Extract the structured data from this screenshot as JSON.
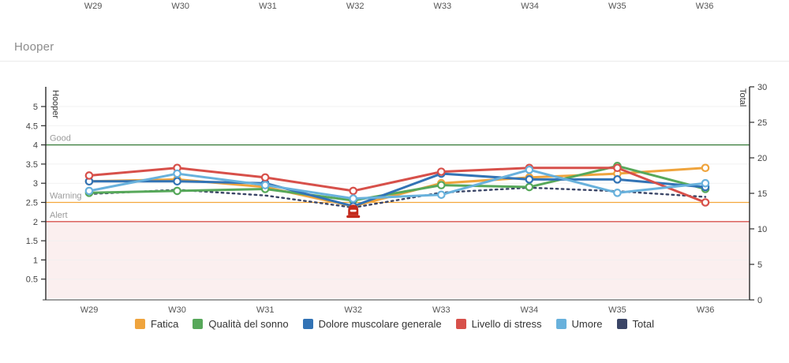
{
  "header": {
    "title": "Hooper"
  },
  "previous_chart_axis": {
    "labels": [
      "W29",
      "W30",
      "W31",
      "W32",
      "W33",
      "W34",
      "W35",
      "W36"
    ]
  },
  "chart_data": {
    "type": "line",
    "categories": [
      "W29",
      "W30",
      "W31",
      "W32",
      "W33",
      "W34",
      "W35",
      "W36"
    ],
    "left_axis": {
      "label": "Hooper",
      "ticks": [
        5,
        4.5,
        4,
        3.5,
        3,
        2.5,
        2,
        1.5,
        1,
        0.5
      ],
      "range": [
        0,
        5.55
      ]
    },
    "right_axis": {
      "label": "Total",
      "ticks": [
        30,
        25,
        20,
        15,
        10,
        5,
        0
      ],
      "range": [
        0,
        30
      ]
    },
    "reference_lines": [
      {
        "label": "Good",
        "value": 4,
        "color": "#357a38"
      },
      {
        "label": "Warning",
        "value": 2.5,
        "color": "#f4a73c"
      },
      {
        "label": "Alert",
        "value": 2,
        "color": "#d9534f"
      }
    ],
    "alert_zone": {
      "from": 0,
      "to": 2,
      "color": "#fbefef"
    },
    "series": [
      {
        "name": "Fatica",
        "color": "#efa43d",
        "axis": "left",
        "style": "solid",
        "values": [
          3.05,
          3.1,
          2.9,
          2.4,
          3.0,
          3.15,
          3.25,
          3.4
        ]
      },
      {
        "name": "Qualità del sonno",
        "color": "#57a85a",
        "axis": "left",
        "style": "solid",
        "values": [
          2.75,
          2.8,
          2.85,
          2.55,
          2.95,
          2.9,
          3.45,
          2.85
        ]
      },
      {
        "name": "Dolore muscolare generale",
        "color": "#3273b5",
        "axis": "left",
        "style": "solid",
        "values": [
          3.05,
          3.05,
          3.0,
          2.4,
          3.25,
          3.1,
          3.1,
          2.9
        ]
      },
      {
        "name": "Livello di stress",
        "color": "#d7504a",
        "axis": "left",
        "style": "solid",
        "values": [
          3.2,
          3.4,
          3.15,
          2.8,
          3.3,
          3.4,
          3.4,
          2.5
        ]
      },
      {
        "name": "Umore",
        "color": "#68b1dc",
        "axis": "left",
        "style": "solid",
        "values": [
          2.8,
          3.25,
          2.95,
          2.6,
          2.7,
          3.35,
          2.75,
          3.0
        ]
      },
      {
        "name": "Total",
        "color": "#3a4566",
        "axis": "right",
        "style": "dotted",
        "values": [
          14.9,
          15.5,
          14.7,
          13.0,
          15.1,
          15.8,
          15.3,
          14.5
        ]
      }
    ],
    "alert_marker": {
      "category": "W32",
      "value": 2.45,
      "icon": "alert-icon",
      "color": "#c42a1c"
    },
    "grid": "horizontal",
    "legend_position": "bottom"
  }
}
